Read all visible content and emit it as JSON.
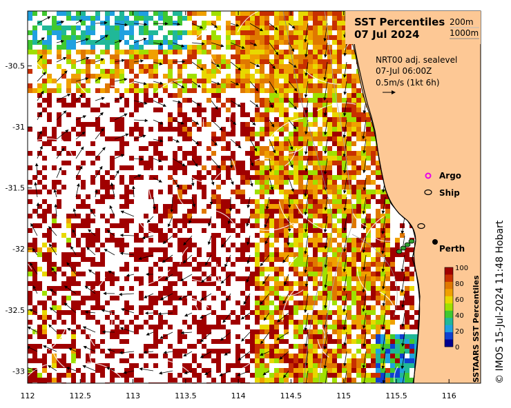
{
  "map": {
    "title_line1": "SST Percentiles",
    "title_line2": "07 Jul 2024",
    "depth_contours": [
      "200m",
      "1000m"
    ],
    "sealevel_line1": "NRT00 adj. sealevel",
    "sealevel_line2": "07-Jul 06:00Z",
    "sealevel_line3": "0.5m/s (1kt 6h)",
    "x_ticks": [
      "112",
      "112.5",
      "113",
      "113.5",
      "114",
      "114.5",
      "115",
      "115.5",
      "116"
    ],
    "x_tick_values": [
      112,
      112.5,
      113,
      113.5,
      114,
      114.5,
      115,
      115.5,
      116
    ],
    "y_ticks": [
      "-30.5",
      "-31",
      "-31.5",
      "-32",
      "-32.5",
      "-33"
    ],
    "y_tick_values": [
      -30.5,
      -31,
      -31.5,
      -32,
      -32.5,
      -33
    ],
    "lon_range": [
      112,
      116.3
    ],
    "lat_range": [
      -33.1,
      -30.05
    ],
    "city": {
      "name": "Perth",
      "lon": 115.86,
      "lat": -31.95
    },
    "legend": {
      "argo_label": "Argo",
      "argo_color": "#e800e8",
      "ship_label": "Ship"
    },
    "colorbar": {
      "title": "SSTAARS SST Percentiles",
      "labels": [
        "100",
        "80",
        "60",
        "40",
        "20",
        "0"
      ],
      "colors": [
        "#a00000",
        "#c83000",
        "#e07800",
        "#f0a000",
        "#e8d800",
        "#a0e000",
        "#40c830",
        "#20b898",
        "#20a0e0",
        "#1040d0",
        "#000090"
      ]
    },
    "credit": "© IMOS 15-Jul-2024 11:48 Hobart",
    "land_color": "#fdc895"
  }
}
